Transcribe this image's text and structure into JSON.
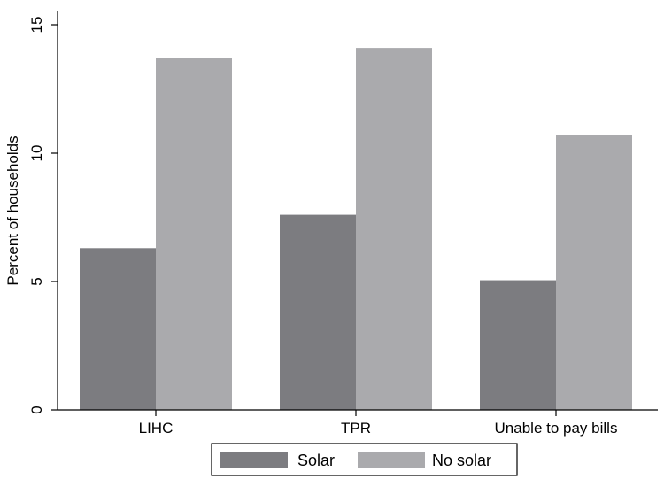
{
  "chart_data": {
    "type": "bar",
    "categories": [
      "LIHC",
      "TPR",
      "Unable to pay bills"
    ],
    "series": [
      {
        "name": "Solar",
        "values": [
          6.3,
          7.6,
          5.05
        ],
        "color": "#7c7c80"
      },
      {
        "name": "No solar",
        "values": [
          13.7,
          14.1,
          10.7
        ],
        "color": "#aaaaad"
      }
    ],
    "ylabel": "Percent of households",
    "xlabel": "",
    "ylim": [
      0,
      15
    ],
    "yticks": [
      0,
      5,
      10,
      15
    ],
    "grid": false,
    "legend_position": "bottom"
  }
}
